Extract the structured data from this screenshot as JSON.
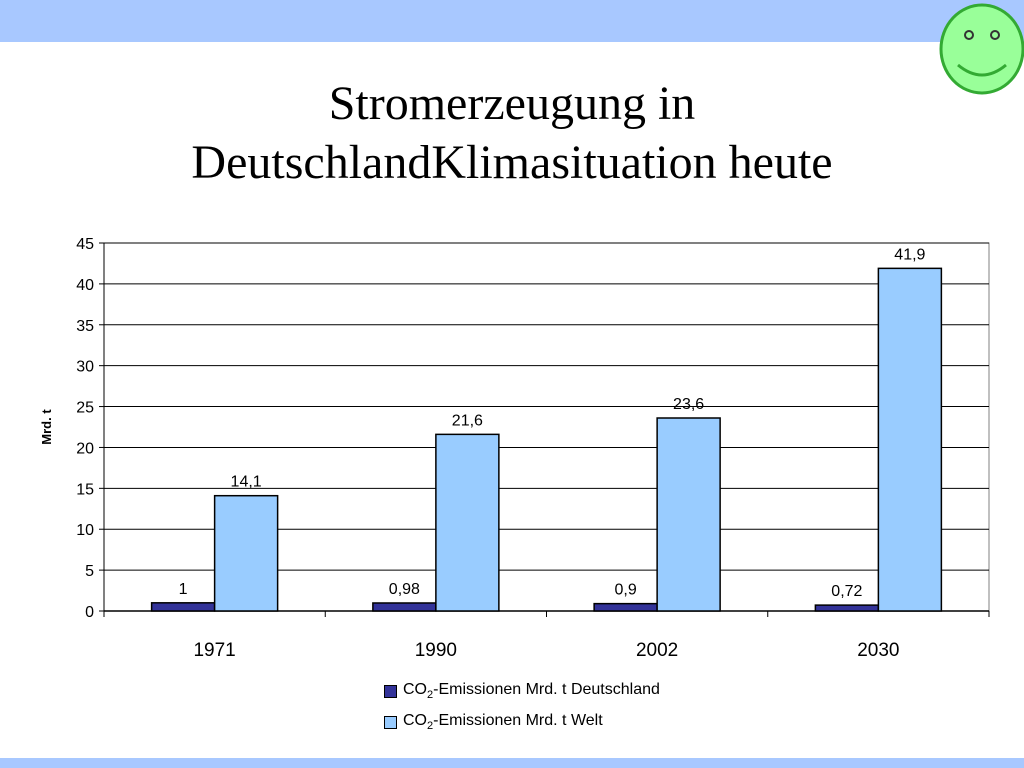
{
  "slide": {
    "title_line1": "Stromerzeugung in",
    "title_line2": "DeutschlandKlimasituation heute"
  },
  "icons": {
    "decoration": "smiley-face-icon"
  },
  "colors": {
    "band": "#a8c8ff",
    "series_de": "#333399",
    "series_welt": "#99ccff",
    "smiley_fill": "#99ff99",
    "smiley_stroke": "#33aa33"
  },
  "chart_data": {
    "type": "bar",
    "title": "",
    "xlabel": "",
    "ylabel": "Mrd. t",
    "ylim": [
      0,
      45
    ],
    "yticks": [
      0,
      5,
      10,
      15,
      20,
      25,
      30,
      35,
      40,
      45
    ],
    "grid": true,
    "legend_position": "bottom",
    "categories": [
      "1971",
      "1990",
      "2002",
      "2030"
    ],
    "series": [
      {
        "legend_prefix": "CO",
        "legend_sub": "2",
        "legend_suffix": "-Emissionen Mrd. t Deutschland",
        "color": "#333399",
        "values": [
          1,
          0.98,
          0.9,
          0.72
        ],
        "value_labels": [
          "1",
          "0,98",
          "0,9",
          "0,72"
        ]
      },
      {
        "legend_prefix": "CO",
        "legend_sub": "2",
        "legend_suffix": "-Emissionen Mrd. t Welt",
        "color": "#99ccff",
        "values": [
          14.1,
          21.6,
          23.6,
          41.9
        ],
        "value_labels": [
          "14,1",
          "21,6",
          "23,6",
          "41,9"
        ]
      }
    ]
  }
}
